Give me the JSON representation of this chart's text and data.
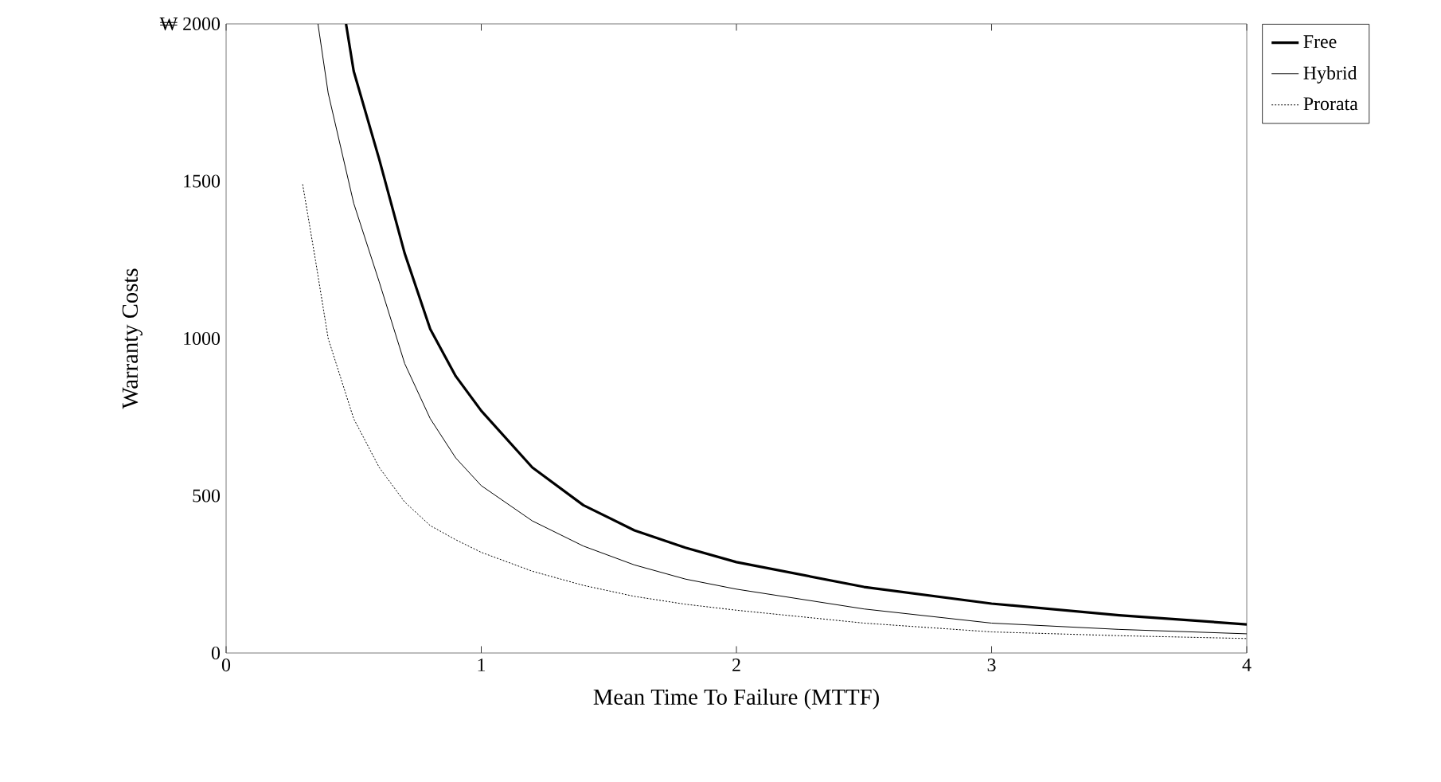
{
  "chart_data": {
    "type": "line",
    "xlabel": "Mean Time To Failure (MTTF)",
    "ylabel": "Warranty Costs",
    "xlim": [
      0,
      4
    ],
    "ylim": [
      0,
      2000
    ],
    "xticks": [
      0,
      1,
      2,
      3,
      4
    ],
    "yticks": [
      0,
      500,
      1000,
      1500,
      {
        "value": 2000,
        "label": "₩ 2000"
      }
    ],
    "legend": "top right",
    "grid": false,
    "series": [
      {
        "name": "Free",
        "color": "#000000",
        "line_style": "solid",
        "x": [
          0.47,
          0.5,
          0.6,
          0.7,
          0.8,
          0.9,
          1,
          1.2,
          1.4,
          1.6,
          1.8,
          2,
          2.5,
          3,
          3.5,
          4
        ],
        "values": [
          2000,
          1850,
          1570,
          1270,
          1030,
          880,
          770,
          590,
          470,
          390,
          335,
          289,
          210,
          157,
          120,
          91
        ]
      },
      {
        "name": "Hybrid",
        "color": "#000000",
        "line_style": "solid",
        "x": [
          0.36,
          0.4,
          0.5,
          0.6,
          0.7,
          0.8,
          0.9,
          1,
          1.2,
          1.4,
          1.6,
          1.8,
          2,
          2.5,
          3,
          3.5,
          4
        ],
        "values": [
          2000,
          1780,
          1430,
          1180,
          920,
          745,
          620,
          532,
          420,
          340,
          280,
          235,
          203,
          140,
          95,
          75,
          61
        ]
      },
      {
        "name": "Prorata",
        "color": "#000000",
        "line_style": "dotted",
        "x": [
          0.3,
          0.35,
          0.4,
          0.5,
          0.6,
          0.7,
          0.8,
          0.9,
          1,
          1.2,
          1.4,
          1.6,
          1.8,
          2,
          2.5,
          3,
          3.5,
          4
        ],
        "values": [
          1490,
          1250,
          1000,
          745,
          590,
          480,
          405,
          360,
          320,
          260,
          215,
          180,
          155,
          136,
          95,
          67,
          55,
          46
        ]
      }
    ]
  }
}
